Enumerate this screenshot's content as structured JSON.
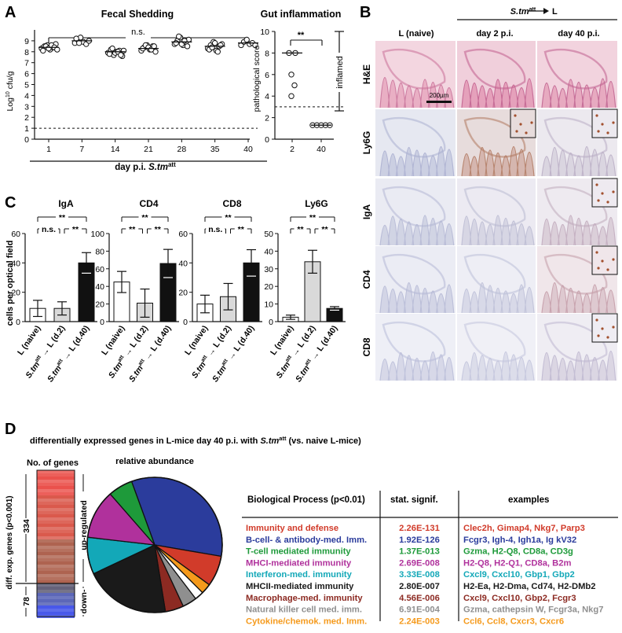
{
  "panels": {
    "A": {
      "letter": "A",
      "fecal": {
        "title": "Fecal Shedding",
        "ylabel": "Log",
        "ylabel_sup": "10",
        "ylabel_rest": " cfu/g",
        "ns_label": "n.s.",
        "xlabel_prefix": "day p.i. ",
        "xlabel_strain": "S.tm",
        "xlabel_sup": "att",
        "yticks": [
          "0",
          "1",
          "2",
          "3",
          "4",
          "5",
          "6",
          "7",
          "8",
          "9"
        ],
        "xticks": [
          "1",
          "7",
          "14",
          "21",
          "28",
          "35",
          "40"
        ]
      },
      "inflammation": {
        "title": "Gut inflammation",
        "ylabel": "pathological score",
        "sig_label": "**",
        "inflamed_label": "inflamed",
        "yticks": [
          "0",
          "2",
          "4",
          "6",
          "8",
          "10"
        ],
        "xticks": [
          "2",
          "40"
        ]
      }
    },
    "B": {
      "letter": "B",
      "header_strain": "S.tm",
      "header_sup": "att",
      "header_target": "L",
      "col_labels": [
        "L (naive)",
        "day 2 p.i.",
        "day 40 p.i."
      ],
      "row_labels": [
        "H&E",
        "Ly6G",
        "IgA",
        "CD4",
        "CD8"
      ],
      "scalebar": "200µm"
    },
    "C": {
      "letter": "C",
      "ylabel": "cells per optical field",
      "group_labels": [
        "L (naive)",
        "→ L (d.2)",
        "→ L (d.40)"
      ],
      "strain": "S.tm",
      "strain_sup": "att"
    },
    "D": {
      "letter": "D",
      "title_prefix": "differentially expressed genes in L-mice day 40 p.i. with ",
      "title_strain": "S.tm",
      "title_sup": "att",
      "title_suffix": " (vs. naive L-mice)",
      "bar": {
        "header": "No. of genes",
        "side_label": "diff. exp. genes  (p<0.001)",
        "up_count": "334",
        "up_label": "up-regulated",
        "down_count": "78",
        "down_label": "down-"
      },
      "pie_title": "relative abundance",
      "table": {
        "headers": [
          "Biological Process (p<0.01)",
          "stat. signif.",
          "examples"
        ],
        "rows": [
          {
            "process": "Immunity and defense",
            "signif": "2.26E-131",
            "examples": "Clec2h, Gimap4, Nkg7, Parp3",
            "color": "#d13b2a"
          },
          {
            "process": "B-cell- & antibody-med. Imm.",
            "signif": "1.92E-126",
            "examples": "Fcgr3, Igh-4, Igh1a, Ig kV32",
            "color": "#2b3c9c"
          },
          {
            "process": "T-cell mediated immunity",
            "signif": "1.37E-013",
            "examples": "Gzma, H2-Q8, CD8a, CD3g",
            "color": "#1e9a3a"
          },
          {
            "process": "MHCI-mediated immunity",
            "signif": "2.69E-008",
            "examples": "H2-Q8, H2-Q1, CD8a, B2m",
            "color": "#b0319c"
          },
          {
            "process": "Interferon-med. immunity",
            "signif": "3.33E-008",
            "examples": "Cxcl9, Cxcl10, Gbp1, Gbp2",
            "color": "#13a8b8"
          },
          {
            "process": "MHCII-mediated immunity",
            "signif": "2.80E-007",
            "examples": "H2-Ea, H2-Dma, Cd74, H2-DMb2",
            "color": "#1a1a1a"
          },
          {
            "process": "Macrophage-med. immunity",
            "signif": "4.56E-006",
            "examples": "Cxcl9, Cxcl10, Gbp2, Fcgr3",
            "color": "#8c2a22"
          },
          {
            "process": "Natural killer cell med. imm.",
            "signif": "6.91E-004",
            "examples": "Gzma, cathepsin W, Fcgr3a, Nkg7",
            "color": "#8f8f8f"
          },
          {
            "process": "Cytokine/chemok. med. Imm.",
            "signif": "2.24E-003",
            "examples": "Ccl6, Ccl8, Cxcr3, Cxcr6",
            "color": "#f59a1c"
          }
        ]
      }
    }
  },
  "chart_data": [
    {
      "type": "scatter",
      "title": "Fecal Shedding",
      "xlabel": "day p.i. S.tm att",
      "ylabel": "Log10 cfu/g",
      "ylim": [
        0,
        10
      ],
      "categories": [
        "1",
        "7",
        "14",
        "21",
        "28",
        "35",
        "40"
      ],
      "series": [
        {
          "values": [
            [
              8.3,
              8.5,
              8.6,
              8.2,
              8.4,
              8.7,
              8.1,
              8.5,
              8.3,
              8.6,
              8.4,
              8.2
            ],
            [
              8.8,
              9.1,
              9.3,
              8.9,
              8.7,
              9.0,
              9.2,
              8.8
            ],
            [
              7.9,
              8.2,
              7.7,
              8.0,
              8.1,
              7.6,
              7.8,
              8.3,
              7.9,
              8.0,
              7.7,
              8.1
            ],
            [
              8.1,
              8.4,
              8.6,
              8.2,
              8.5,
              8.0,
              8.3,
              8.6,
              8.4,
              8.2,
              8.5
            ],
            [
              8.7,
              9.0,
              9.3,
              8.6,
              8.9,
              9.1,
              8.8,
              9.4,
              8.7,
              9.0,
              8.5
            ],
            [
              8.3,
              8.6,
              8.9,
              8.1,
              8.5,
              8.7,
              8.2,
              8.4,
              8.8,
              8.0,
              8.6
            ],
            [
              8.6,
              8.9,
              9.1,
              8.7,
              8.8,
              8.6
            ]
          ]
        }
      ],
      "medians": [
        8.4,
        9.0,
        8.0,
        8.3,
        8.9,
        8.5,
        8.8
      ],
      "reference_line": 1
    },
    {
      "type": "scatter",
      "title": "Gut inflammation",
      "ylabel": "pathological score",
      "ylim": [
        0,
        10
      ],
      "categories": [
        "2",
        "40"
      ],
      "series": [
        {
          "values": [
            [
              8,
              8,
              6,
              5,
              4
            ],
            [
              1.3,
              1.3,
              1.3,
              1.3,
              1.3
            ]
          ]
        }
      ],
      "medians": [
        8,
        1.3
      ],
      "reference_line": 3
    },
    {
      "type": "bar",
      "title": "IgA",
      "categories": [
        "L (naive)",
        "S.tm att → L (d.2)",
        "S.tm att → L (d.40)"
      ],
      "values": [
        9,
        9,
        40
      ],
      "errors": [
        5.5,
        4.5,
        7
      ],
      "ylabel": "cells per optical field",
      "ylim": [
        0,
        60
      ],
      "yticks": [
        0,
        20,
        40,
        60
      ],
      "significance": [
        [
          "n.s.",
          0,
          1
        ],
        [
          "**",
          1,
          2
        ],
        [
          "**",
          0,
          2
        ]
      ]
    },
    {
      "type": "bar",
      "title": "CD4",
      "categories": [
        "L (naive)",
        "S.tm att → L (d.2)",
        "S.tm att → L (d.40)"
      ],
      "values": [
        45,
        21,
        66
      ],
      "errors": [
        12,
        16,
        16
      ],
      "ylim": [
        0,
        100
      ],
      "yticks": [
        0,
        20,
        40,
        60,
        80,
        100
      ],
      "significance": [
        [
          "**",
          0,
          1
        ],
        [
          "**",
          1,
          2
        ],
        [
          "**",
          0,
          2
        ]
      ]
    },
    {
      "type": "bar",
      "title": "CD8",
      "categories": [
        "L (naive)",
        "S.tm att → L (d.2)",
        "S.tm att → L (d.40)"
      ],
      "values": [
        12,
        17,
        40
      ],
      "errors": [
        6,
        9,
        9
      ],
      "ylim": [
        0,
        60
      ],
      "yticks": [
        0,
        20,
        40,
        60
      ],
      "significance": [
        [
          "n.s.",
          0,
          1
        ],
        [
          "**",
          1,
          2
        ],
        [
          "**",
          0,
          2
        ]
      ]
    },
    {
      "type": "bar",
      "title": "Ly6G",
      "categories": [
        "L (naive)",
        "S.tm att → L (d.2)",
        "S.tm att → L (d.40)"
      ],
      "values": [
        2.5,
        34,
        7.5
      ],
      "errors": [
        1.2,
        6.5,
        1
      ],
      "ylim": [
        0,
        50
      ],
      "yticks": [
        0,
        10,
        20,
        30,
        40,
        50
      ],
      "significance": [
        [
          "**",
          0,
          1
        ],
        [
          "**",
          1,
          2
        ],
        [
          "**",
          0,
          2
        ]
      ]
    },
    {
      "type": "pie",
      "title": "relative abundance",
      "categories": [
        "Immunity and defense",
        "B-cell- & antibody-med. Imm.",
        "T-cell mediated immunity",
        "MHCI-mediated immunity",
        "Interferon-med. immunity",
        "MHCII-mediated immunity",
        "Macrophage-med. immunity",
        "Natural killer cell med. imm.",
        "Cytokine/chemok. med. Imm."
      ],
      "values": [
        7.5,
        34,
        6,
        12,
        9,
        21,
        4.5,
        3.5,
        2.5
      ]
    }
  ]
}
